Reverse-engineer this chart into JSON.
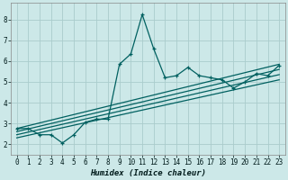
{
  "xlabel": "Humidex (Indice chaleur)",
  "bg_color": "#cce8e8",
  "grid_color": "#aacccc",
  "line_color": "#006060",
  "xlim": [
    -0.5,
    23.5
  ],
  "ylim": [
    1.5,
    8.8
  ],
  "xticks": [
    0,
    1,
    2,
    3,
    4,
    5,
    6,
    7,
    8,
    9,
    10,
    11,
    12,
    13,
    14,
    15,
    16,
    17,
    18,
    19,
    20,
    21,
    22,
    23
  ],
  "yticks": [
    2,
    3,
    4,
    5,
    6,
    7,
    8
  ],
  "jagged_x": [
    0,
    1,
    2,
    3,
    4,
    5,
    6,
    7,
    8,
    9,
    10,
    11,
    12,
    13,
    14,
    15,
    16,
    17,
    18,
    19,
    20,
    21,
    22,
    23
  ],
  "jagged_y": [
    2.75,
    2.75,
    2.45,
    2.45,
    2.05,
    2.45,
    3.05,
    3.2,
    3.2,
    5.85,
    6.35,
    8.25,
    6.6,
    5.2,
    5.3,
    5.7,
    5.3,
    5.2,
    5.1,
    4.7,
    5.0,
    5.4,
    5.3,
    5.8
  ],
  "smooth_lines": [
    {
      "x0": 0.0,
      "y0": 2.75,
      "x1": 23.0,
      "y1": 5.85
    },
    {
      "x0": 0.0,
      "y0": 2.6,
      "x1": 23.0,
      "y1": 5.6
    },
    {
      "x0": 0.0,
      "y0": 2.45,
      "x1": 23.0,
      "y1": 5.35
    },
    {
      "x0": 0.0,
      "y0": 2.3,
      "x1": 23.0,
      "y1": 5.1
    }
  ]
}
